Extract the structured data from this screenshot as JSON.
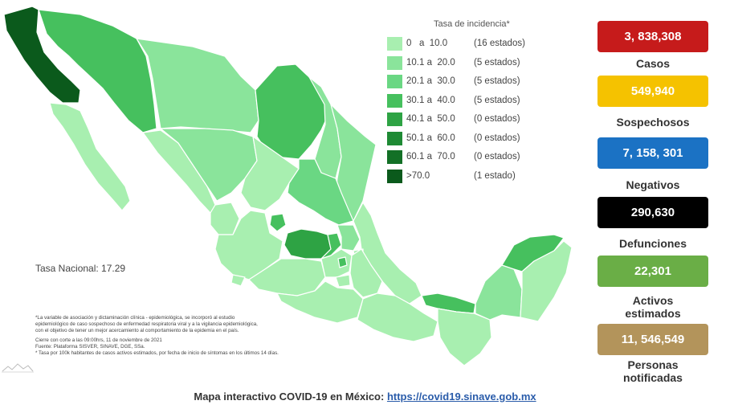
{
  "legend": {
    "title": "Tasa de incidencia*",
    "items": [
      {
        "range": "0   a  10.0",
        "count": "(16 estados)",
        "color": "#a8efb0"
      },
      {
        "range": "10.1 a  20.0",
        "count": "(5 estados)",
        "color": "#8ae49b"
      },
      {
        "range": "20.1 a  30.0",
        "count": "(5 estados)",
        "color": "#6ad783"
      },
      {
        "range": "30.1 a  40.0",
        "count": "(5 estados)",
        "color": "#46c05e"
      },
      {
        "range": "40.1 a  50.0",
        "count": "(0 estados)",
        "color": "#2ea344"
      },
      {
        "range": "50.1 a  60.0",
        "count": "(0 estados)",
        "color": "#1e8a34"
      },
      {
        "range": "60.1 a  70.0",
        "count": "(0 estados)",
        "color": "#137026"
      },
      {
        "range": ">70.0",
        "count": "(1 estado)",
        "color": "#0b5a1c"
      }
    ]
  },
  "tasa_nacional": "Tasa Nacional: 17.29",
  "notes": [
    "*La variable de asociación y dictaminación clínica - epidemiológica, se incorporó al estudio",
    "epidemiológico de caso sospechoso de enfermedad respiratoria viral y a la vigilancia epidemiológica,",
    "con el objetivo de tener un mejor acercamiento al comportamiento de la epidemia en el país.",
    "Cierre con corte a las 09:00hrs, 11 de noviembre de 2021",
    "Fuente: Plataforma SISVER, SINAVE, DGE, SSa.",
    "* Tasa por 100k habitantes de casos activos estimados, por fecha de inicio de síntomas en los últimos 14 días."
  ],
  "stats": [
    {
      "value": "3, 838,308",
      "label": "Casos",
      "color": "#c61b1b"
    },
    {
      "value": "549,940",
      "label": "Sospechosos",
      "color": "#f5c200"
    },
    {
      "value": "7, 158, 301",
      "label": "Negativos",
      "color": "#1b72c4"
    },
    {
      "value": "290,630",
      "label": "Defunciones",
      "color": "#000000"
    },
    {
      "value": "22,301",
      "label": "Activos estimados",
      "color": "#6aae46"
    },
    {
      "value": "11, 546,549",
      "label": "Personas notificadas",
      "color": "#b3945b"
    }
  ],
  "footer": {
    "text": "Mapa interactivo COVID-19 en México: ",
    "link": "https://covid19.sinave.gob.mx"
  }
}
